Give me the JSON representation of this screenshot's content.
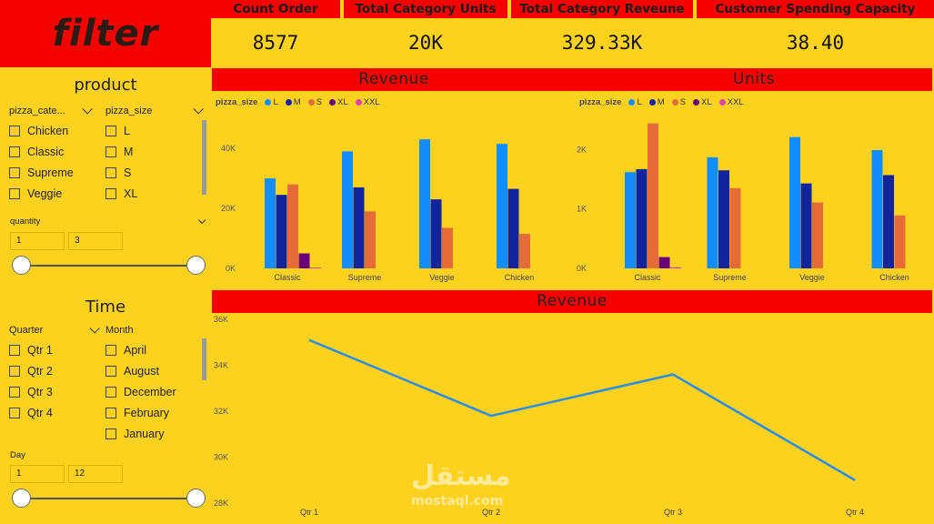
{
  "logo": "filter",
  "kpis": [
    {
      "label": "Count Order",
      "value": "8577"
    },
    {
      "label": "Total Category Units",
      "value": "20K"
    },
    {
      "label": "Total Category Reveune",
      "value": "329.33K"
    },
    {
      "label": "Customer Spending Capacity",
      "value": "38.40"
    }
  ],
  "product": {
    "title": "product",
    "category_header": "pizza_cate...",
    "categories": [
      "Chicken",
      "Classic",
      "Supreme",
      "Veggie"
    ],
    "size_header": "pizza_size",
    "sizes": [
      "L",
      "M",
      "S",
      "XL"
    ],
    "quantity_label": "quantity",
    "quantity_min": "1",
    "quantity_max": "3"
  },
  "time": {
    "title": "Time",
    "quarter_header": "Quarter",
    "quarters": [
      "Qtr 1",
      "Qtr 2",
      "Qtr 3",
      "Qtr 4"
    ],
    "month_header": "Month",
    "months": [
      "April",
      "August",
      "December",
      "February",
      "January"
    ],
    "day_label": "Day",
    "day_min": "1",
    "day_max": "12"
  },
  "colors": {
    "L": "#118dff",
    "M": "#12239e",
    "S": "#e66c37",
    "XL": "#6b007b",
    "XXL": "#e044a7"
  },
  "legend_title": "pizza_size",
  "legend_items": [
    "L",
    "M",
    "S",
    "XL",
    "XXL"
  ],
  "chart_data": [
    {
      "type": "bar",
      "title": "Revenue",
      "categories": [
        "Classic",
        "Supreme",
        "Veggie",
        "Chicken"
      ],
      "yticks": [
        "0K",
        "20K",
        "40K"
      ],
      "ylim": [
        0,
        47000
      ],
      "series": [
        {
          "name": "L",
          "values": [
            30000,
            39000,
            43000,
            41500
          ]
        },
        {
          "name": "M",
          "values": [
            24500,
            27000,
            23000,
            26500
          ]
        },
        {
          "name": "S",
          "values": [
            28000,
            19000,
            13500,
            11500
          ]
        },
        {
          "name": "XL",
          "values": [
            5000,
            0,
            0,
            0
          ]
        },
        {
          "name": "XXL",
          "values": [
            300,
            0,
            0,
            0
          ]
        }
      ]
    },
    {
      "type": "bar",
      "title": "Units",
      "categories": [
        "Classic",
        "Supreme",
        "Veggie",
        "Chicken"
      ],
      "yticks": [
        "0K",
        "1K",
        "2K"
      ],
      "ylim": [
        0,
        2450
      ],
      "series": [
        {
          "name": "L",
          "values": [
            1620,
            1870,
            2210,
            1990
          ]
        },
        {
          "name": "M",
          "values": [
            1670,
            1650,
            1430,
            1570
          ]
        },
        {
          "name": "S",
          "values": [
            2440,
            1350,
            1110,
            890
          ]
        },
        {
          "name": "XL",
          "values": [
            190,
            0,
            0,
            0
          ]
        },
        {
          "name": "XXL",
          "values": [
            20,
            0,
            0,
            0
          ]
        }
      ]
    },
    {
      "type": "line",
      "title": "Revenue",
      "x": [
        "Qtr 1",
        "Qtr 2",
        "Qtr 3",
        "Qtr 4"
      ],
      "yticks": [
        "28K",
        "30K",
        "32K",
        "34K",
        "36K"
      ],
      "ylim": [
        28000,
        36000
      ],
      "series": [
        {
          "values": [
            35100,
            31800,
            33600,
            29000
          ]
        }
      ]
    }
  ],
  "watermark": {
    "arabic": "مستقل",
    "latin": "mostaql.com"
  }
}
